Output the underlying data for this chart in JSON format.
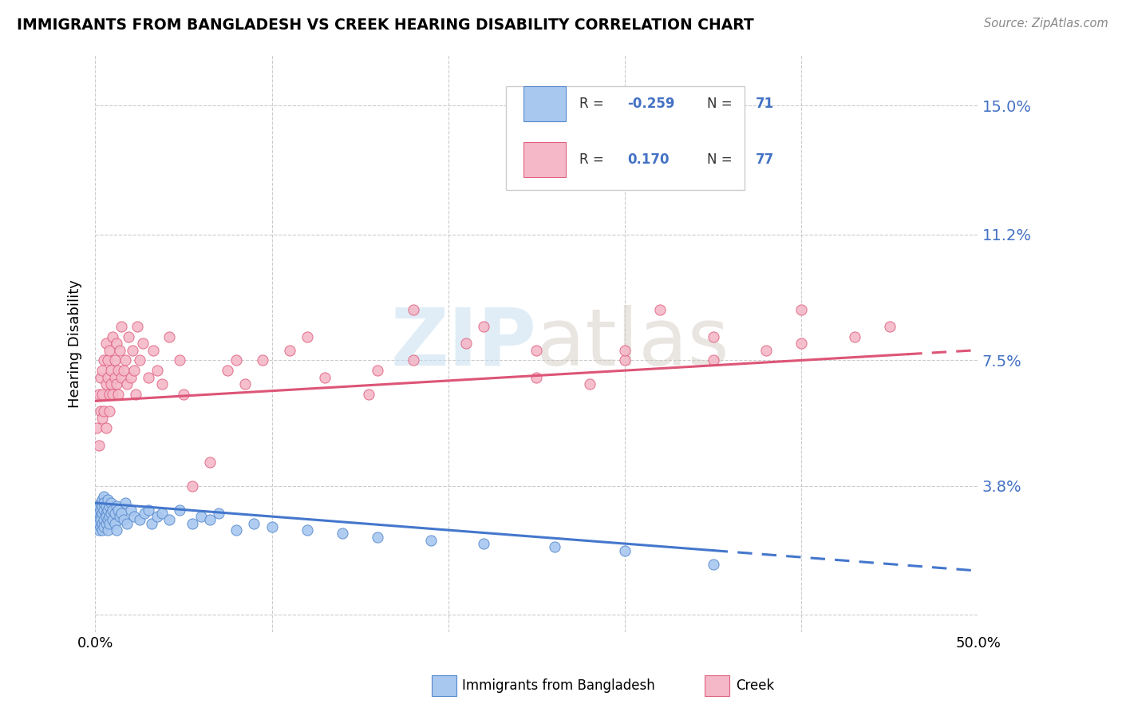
{
  "title": "IMMIGRANTS FROM BANGLADESH VS CREEK HEARING DISABILITY CORRELATION CHART",
  "source": "Source: ZipAtlas.com",
  "ylabel": "Hearing Disability",
  "xlim": [
    0.0,
    0.5
  ],
  "ylim": [
    -0.005,
    0.165
  ],
  "yticks": [
    0.0,
    0.038,
    0.075,
    0.112,
    0.15
  ],
  "ytick_labels": [
    "",
    "3.8%",
    "7.5%",
    "11.2%",
    "15.0%"
  ],
  "xticks": [
    0.0,
    0.1,
    0.2,
    0.3,
    0.4,
    0.5
  ],
  "xtick_labels": [
    "0.0%",
    "",
    "",
    "",
    "",
    "50.0%"
  ],
  "color_bangladesh": "#a8c8f0",
  "color_creek": "#f4b8c8",
  "edge_color_bangladesh": "#5588cc",
  "edge_color_creek": "#e06080",
  "line_color_bangladesh": "#4477cc",
  "line_color_creek": "#dd5577",
  "bangladesh_x": [
    0.001,
    0.001,
    0.002,
    0.002,
    0.002,
    0.002,
    0.003,
    0.003,
    0.003,
    0.003,
    0.003,
    0.004,
    0.004,
    0.004,
    0.004,
    0.004,
    0.005,
    0.005,
    0.005,
    0.005,
    0.005,
    0.006,
    0.006,
    0.006,
    0.006,
    0.007,
    0.007,
    0.007,
    0.007,
    0.008,
    0.008,
    0.008,
    0.009,
    0.009,
    0.01,
    0.01,
    0.011,
    0.011,
    0.012,
    0.012,
    0.013,
    0.014,
    0.015,
    0.016,
    0.017,
    0.018,
    0.02,
    0.022,
    0.025,
    0.028,
    0.03,
    0.032,
    0.035,
    0.038,
    0.042,
    0.048,
    0.055,
    0.06,
    0.065,
    0.07,
    0.08,
    0.09,
    0.1,
    0.12,
    0.14,
    0.16,
    0.19,
    0.22,
    0.26,
    0.3,
    0.35
  ],
  "bangladesh_y": [
    0.031,
    0.028,
    0.032,
    0.03,
    0.027,
    0.025,
    0.033,
    0.029,
    0.031,
    0.026,
    0.028,
    0.034,
    0.03,
    0.027,
    0.032,
    0.025,
    0.035,
    0.031,
    0.028,
    0.033,
    0.026,
    0.03,
    0.032,
    0.027,
    0.029,
    0.031,
    0.028,
    0.034,
    0.025,
    0.032,
    0.029,
    0.027,
    0.03,
    0.033,
    0.031,
    0.028,
    0.03,
    0.027,
    0.032,
    0.025,
    0.031,
    0.029,
    0.03,
    0.028,
    0.033,
    0.027,
    0.031,
    0.029,
    0.028,
    0.03,
    0.031,
    0.027,
    0.029,
    0.03,
    0.028,
    0.031,
    0.027,
    0.029,
    0.028,
    0.03,
    0.025,
    0.027,
    0.026,
    0.025,
    0.024,
    0.023,
    0.022,
    0.021,
    0.02,
    0.019,
    0.015
  ],
  "creek_x": [
    0.001,
    0.002,
    0.002,
    0.003,
    0.003,
    0.004,
    0.004,
    0.004,
    0.005,
    0.005,
    0.006,
    0.006,
    0.006,
    0.007,
    0.007,
    0.008,
    0.008,
    0.008,
    0.009,
    0.009,
    0.01,
    0.01,
    0.011,
    0.011,
    0.012,
    0.012,
    0.013,
    0.013,
    0.014,
    0.015,
    0.015,
    0.016,
    0.017,
    0.018,
    0.019,
    0.02,
    0.021,
    0.022,
    0.023,
    0.024,
    0.025,
    0.027,
    0.03,
    0.033,
    0.035,
    0.038,
    0.042,
    0.048,
    0.055,
    0.065,
    0.075,
    0.085,
    0.095,
    0.11,
    0.13,
    0.155,
    0.18,
    0.21,
    0.25,
    0.3,
    0.35,
    0.4,
    0.45,
    0.18,
    0.25,
    0.3,
    0.35,
    0.4,
    0.05,
    0.08,
    0.12,
    0.16,
    0.22,
    0.28,
    0.32,
    0.38,
    0.43
  ],
  "creek_y": [
    0.055,
    0.065,
    0.05,
    0.06,
    0.07,
    0.058,
    0.072,
    0.065,
    0.06,
    0.075,
    0.068,
    0.08,
    0.055,
    0.07,
    0.075,
    0.065,
    0.078,
    0.06,
    0.072,
    0.068,
    0.065,
    0.082,
    0.07,
    0.075,
    0.068,
    0.08,
    0.072,
    0.065,
    0.078,
    0.07,
    0.085,
    0.072,
    0.075,
    0.068,
    0.082,
    0.07,
    0.078,
    0.072,
    0.065,
    0.085,
    0.075,
    0.08,
    0.07,
    0.078,
    0.072,
    0.068,
    0.082,
    0.075,
    0.038,
    0.045,
    0.072,
    0.068,
    0.075,
    0.078,
    0.07,
    0.065,
    0.075,
    0.08,
    0.078,
    0.075,
    0.082,
    0.09,
    0.085,
    0.09,
    0.07,
    0.078,
    0.075,
    0.08,
    0.065,
    0.075,
    0.082,
    0.072,
    0.085,
    0.068,
    0.09,
    0.078,
    0.082
  ],
  "trend_bd_x0": 0.0,
  "trend_bd_x1": 0.5,
  "trend_bd_y0": 0.033,
  "trend_bd_y1": 0.013,
  "trend_bd_solid_end": 0.35,
  "trend_cr_x0": 0.0,
  "trend_cr_x1": 0.5,
  "trend_cr_y0": 0.063,
  "trend_cr_y1": 0.078,
  "trend_cr_solid_end": 0.46
}
